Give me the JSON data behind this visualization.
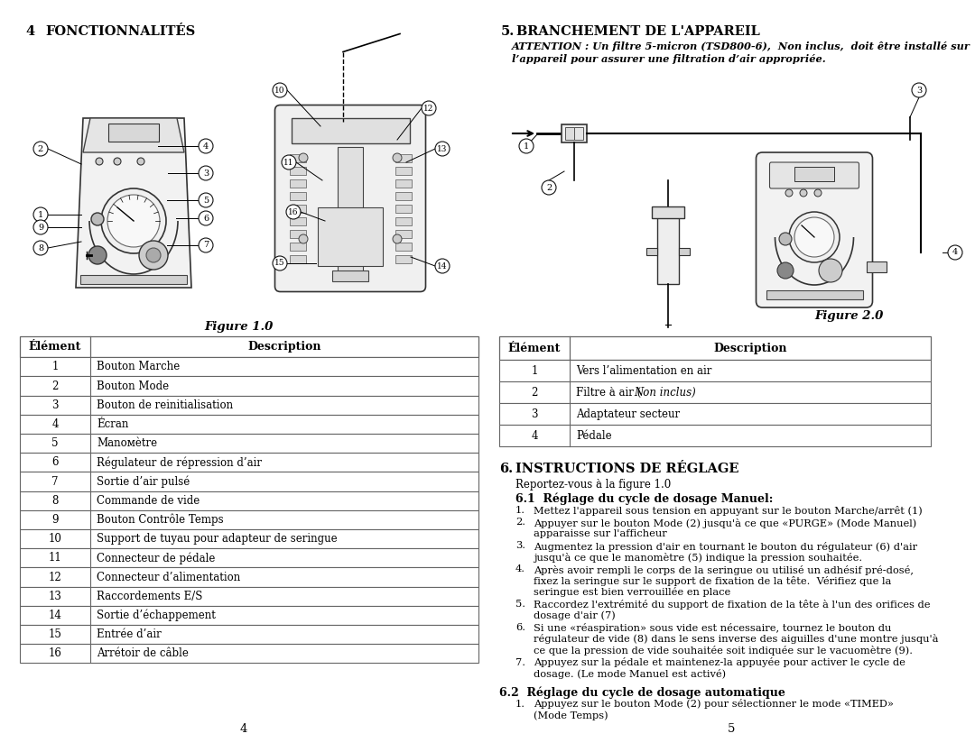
{
  "page_bg": "#ffffff",
  "left_section_header": "4    FONCTIONNALITÉS",
  "right_section_number": "5.",
  "right_section_title": "  BRANCHEMENT DE L’APPAREIL",
  "attention_line1": "ATTENTION : Un filtre 5-micron (TSD800-6),  Non inclus,  doit être installé sur",
  "attention_line2": "l’appareil pour assurer une filtration d’air appropriée.",
  "figure1_caption": "Figure 1.0",
  "figure2_caption": "Figure 2.0",
  "table1_headers": [
    "Élément",
    "Description"
  ],
  "table1_rows": [
    [
      "1",
      "Bouton Marche"
    ],
    [
      "2",
      "Bouton Mode"
    ],
    [
      "3",
      "Bouton de reinitialisation"
    ],
    [
      "4",
      "Écran"
    ],
    [
      "5",
      "Manoмètre"
    ],
    [
      "6",
      "Régulateur de répression d’air"
    ],
    [
      "7",
      "Sortie d’air pulsé"
    ],
    [
      "8",
      "Commande de vide"
    ],
    [
      "9",
      "Bouton Contrôle Temps"
    ],
    [
      "10",
      "Support de tuyau pour adapteur de seringue"
    ],
    [
      "11",
      "Connecteur de pédale"
    ],
    [
      "12",
      "Connecteur d’alimentation"
    ],
    [
      "13",
      "Raccordements E/S"
    ],
    [
      "14",
      "Sortie d’échappement"
    ],
    [
      "15",
      "Entrée d’air"
    ],
    [
      "16",
      "Arrétoir de câble"
    ]
  ],
  "table2_headers": [
    "Élément",
    "Description"
  ],
  "table2_rows": [
    [
      "1",
      "Vers l’alimentation en air"
    ],
    [
      "2",
      "Filtre à air ( Non inclus)"
    ],
    [
      "3",
      "Adaptateur secteur"
    ],
    [
      "4",
      "Pédale"
    ]
  ],
  "section6_header": "6.   INSTRUCTIONS DE RÉGLAGE",
  "section6_sub": "Reportez-vous à la figure 1.0",
  "section61_header": "6.1  Réglage du cycle de dosage Manuel:",
  "section61_items": [
    "Mettez l’appareil sous tension en appuyant sur le bouton Marche/arrêt (1)",
    "Appuyer sur le bouton Mode (2) jusqu’à ce que “PURGE” (Mode Manuel)\napparaisse sur l’afficheur",
    "Augmentez la pression d’air en tournant le bouton du régulateur (6) d’air\njusqu’à ce que le manoмètre (5) indique la pression souhaitée.",
    "Après avoir rempli le corps de la seringue ou utilisé un adhésif pré-dosé,\nfixez la seringue sur le support de fixation de la tête.  Vérifiez que la\nseringue est bien verrouillée en place",
    "Raccordez l’extrémité du support de fixation de la tête à l’un des orifices de\ndosage d’air (7)",
    "Si une “réaspiration” sous vide est nécessaire, tournez le bouton du\nrégulateur de vide (8) dans le sens inverse des aiguilles d’une montre jusqu’à\nce que la pression de vide souhaitée soit indiquée sur le vacuomètre (9).",
    "Appuyez sur la pédale et maintenez-la appuyée pour activer le cycle de\ndosage. (Le mode Manuel est activé)"
  ],
  "section62_header": "6.2  Réglage du cycle de dosage automatique",
  "section62_items": [
    "Appuyez sur le bouton Mode (2) pour sélectionner le mode “TIMED”\n(Mode Temps)"
  ],
  "page_numbers": [
    "4",
    "5"
  ],
  "text_color": "#000000",
  "table_border_color": "#666666",
  "font_family": "DejaVu Serif"
}
